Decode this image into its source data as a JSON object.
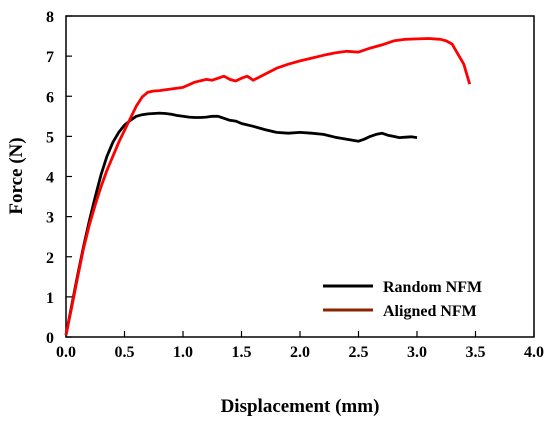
{
  "chart_data": {
    "type": "line",
    "title": "",
    "xlabel": "Displacement (mm)",
    "ylabel": "Force (N)",
    "xlim": [
      0.0,
      4.0
    ],
    "ylim": [
      0,
      8
    ],
    "x_ticks": [
      "0.0",
      "0.5",
      "1.0",
      "1.5",
      "2.0",
      "2.5",
      "3.0",
      "3.5",
      "4.0"
    ],
    "y_ticks": [
      "0",
      "1",
      "2",
      "3",
      "4",
      "5",
      "6",
      "7",
      "8"
    ],
    "grid": false,
    "legend_position": "bottom-right",
    "series": [
      {
        "name": "Random NFM",
        "color": "#000000",
        "x": [
          0.0,
          0.05,
          0.1,
          0.15,
          0.2,
          0.25,
          0.3,
          0.35,
          0.4,
          0.45,
          0.5,
          0.55,
          0.6,
          0.65,
          0.7,
          0.75,
          0.8,
          0.85,
          0.9,
          0.95,
          1.0,
          1.05,
          1.1,
          1.15,
          1.2,
          1.25,
          1.3,
          1.35,
          1.4,
          1.45,
          1.5,
          1.6,
          1.7,
          1.8,
          1.9,
          2.0,
          2.1,
          2.2,
          2.3,
          2.4,
          2.5,
          2.55,
          2.6,
          2.65,
          2.7,
          2.75,
          2.8,
          2.85,
          2.9,
          2.95,
          3.0
        ],
        "y": [
          0.05,
          0.8,
          1.55,
          2.25,
          2.9,
          3.5,
          4.05,
          4.5,
          4.85,
          5.1,
          5.28,
          5.4,
          5.5,
          5.54,
          5.56,
          5.57,
          5.58,
          5.57,
          5.55,
          5.52,
          5.5,
          5.48,
          5.47,
          5.47,
          5.48,
          5.5,
          5.5,
          5.45,
          5.4,
          5.38,
          5.32,
          5.25,
          5.17,
          5.1,
          5.08,
          5.1,
          5.08,
          5.05,
          4.98,
          4.93,
          4.88,
          4.93,
          5.0,
          5.05,
          5.08,
          5.03,
          5.0,
          4.97,
          4.98,
          4.99,
          4.97
        ]
      },
      {
        "name": "Aligned NFM",
        "color": "#ff0000",
        "legend_color": "#8b2500",
        "x": [
          0.0,
          0.05,
          0.1,
          0.15,
          0.2,
          0.25,
          0.3,
          0.35,
          0.4,
          0.45,
          0.5,
          0.55,
          0.6,
          0.65,
          0.7,
          0.75,
          0.8,
          0.85,
          0.9,
          1.0,
          1.1,
          1.2,
          1.25,
          1.3,
          1.35,
          1.4,
          1.45,
          1.5,
          1.55,
          1.6,
          1.7,
          1.8,
          1.9,
          2.0,
          2.1,
          2.2,
          2.3,
          2.4,
          2.5,
          2.6,
          2.7,
          2.8,
          2.9,
          3.0,
          3.1,
          3.2,
          3.25,
          3.3,
          3.35,
          3.4,
          3.45
        ],
        "y": [
          0.05,
          0.75,
          1.5,
          2.2,
          2.8,
          3.3,
          3.75,
          4.15,
          4.5,
          4.85,
          5.15,
          5.45,
          5.75,
          5.98,
          6.1,
          6.13,
          6.14,
          6.16,
          6.18,
          6.22,
          6.35,
          6.42,
          6.4,
          6.45,
          6.5,
          6.42,
          6.38,
          6.45,
          6.5,
          6.4,
          6.55,
          6.7,
          6.8,
          6.88,
          6.95,
          7.02,
          7.08,
          7.12,
          7.1,
          7.2,
          7.28,
          7.38,
          7.42,
          7.43,
          7.44,
          7.42,
          7.38,
          7.3,
          7.05,
          6.8,
          6.3
        ]
      }
    ]
  }
}
